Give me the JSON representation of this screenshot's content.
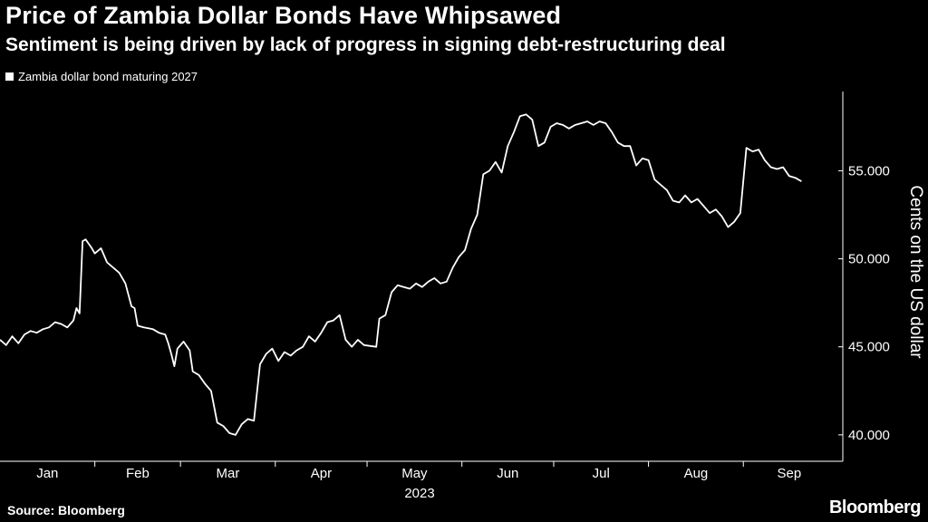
{
  "header": {
    "title": "Price of Zambia Dollar Bonds Have Whipsawed",
    "subtitle": "Sentiment is being driven by lack of progress in signing debt-restructuring deal"
  },
  "footer": {
    "source": "Source: Bloomberg",
    "brand": "Bloomberg"
  },
  "colors": {
    "background": "#000000",
    "line": "#ffffff",
    "text": "#ffffff"
  },
  "chart_data": {
    "type": "line",
    "title": "Price of Zambia Dollar Bonds Have Whipsawed",
    "subtitle": "Sentiment is being driven by lack of progress in signing debt-restructuring deal",
    "xlabel": "2023",
    "ylabel": "Cents on the US dollar",
    "ylim": [
      38.5,
      59.5
    ],
    "yticks": [
      40,
      45,
      50,
      55
    ],
    "ytick_labels": [
      "40.000",
      "45.000",
      "50.000",
      "55.000"
    ],
    "xlim": [
      "2023-01-01",
      "2023-09-27"
    ],
    "x_ticks": [
      "2023-01-01",
      "2023-02-01",
      "2023-03-01",
      "2023-04-01",
      "2023-05-01",
      "2023-06-01",
      "2023-07-01",
      "2023-08-01",
      "2023-09-01"
    ],
    "x_tick_labels": [
      "Jan",
      "Feb",
      "Mar",
      "Apr",
      "May",
      "Jun",
      "Jul",
      "Aug",
      "Sep"
    ],
    "year_label": "2023",
    "grid": false,
    "legend_position": "top-left",
    "series": [
      {
        "name": "Zambia dollar bond maturing 2027",
        "points": [
          [
            "2023-01-01",
            45.4
          ],
          [
            "2023-01-03",
            45.1
          ],
          [
            "2023-01-05",
            45.6
          ],
          [
            "2023-01-07",
            45.2
          ],
          [
            "2023-01-09",
            45.7
          ],
          [
            "2023-01-11",
            45.9
          ],
          [
            "2023-01-13",
            45.8
          ],
          [
            "2023-01-15",
            46.0
          ],
          [
            "2023-01-17",
            46.1
          ],
          [
            "2023-01-19",
            46.4
          ],
          [
            "2023-01-21",
            46.3
          ],
          [
            "2023-01-23",
            46.1
          ],
          [
            "2023-01-25",
            46.5
          ],
          [
            "2023-01-26",
            47.2
          ],
          [
            "2023-01-27",
            46.9
          ],
          [
            "2023-01-28",
            51.0
          ],
          [
            "2023-01-29",
            51.1
          ],
          [
            "2023-01-31",
            50.6
          ],
          [
            "2023-02-01",
            50.3
          ],
          [
            "2023-02-03",
            50.6
          ],
          [
            "2023-02-05",
            49.8
          ],
          [
            "2023-02-07",
            49.5
          ],
          [
            "2023-02-09",
            49.2
          ],
          [
            "2023-02-11",
            48.6
          ],
          [
            "2023-02-13",
            47.3
          ],
          [
            "2023-02-14",
            47.2
          ],
          [
            "2023-02-15",
            46.2
          ],
          [
            "2023-02-17",
            46.1
          ],
          [
            "2023-02-20",
            46.0
          ],
          [
            "2023-02-22",
            45.8
          ],
          [
            "2023-02-24",
            45.7
          ],
          [
            "2023-02-25",
            45.2
          ],
          [
            "2023-02-26",
            44.6
          ],
          [
            "2023-02-27",
            43.9
          ],
          [
            "2023-02-28",
            44.9
          ],
          [
            "2023-03-02",
            45.3
          ],
          [
            "2023-03-04",
            44.8
          ],
          [
            "2023-03-05",
            43.6
          ],
          [
            "2023-03-07",
            43.4
          ],
          [
            "2023-03-09",
            42.9
          ],
          [
            "2023-03-11",
            42.5
          ],
          [
            "2023-03-13",
            40.7
          ],
          [
            "2023-03-15",
            40.5
          ],
          [
            "2023-03-17",
            40.1
          ],
          [
            "2023-03-19",
            40.0
          ],
          [
            "2023-03-21",
            40.6
          ],
          [
            "2023-03-23",
            40.9
          ],
          [
            "2023-03-25",
            40.8
          ],
          [
            "2023-03-27",
            44.0
          ],
          [
            "2023-03-29",
            44.6
          ],
          [
            "2023-03-31",
            44.9
          ],
          [
            "2023-04-02",
            44.2
          ],
          [
            "2023-04-04",
            44.7
          ],
          [
            "2023-04-06",
            44.5
          ],
          [
            "2023-04-08",
            44.8
          ],
          [
            "2023-04-10",
            45.0
          ],
          [
            "2023-04-12",
            45.6
          ],
          [
            "2023-04-14",
            45.3
          ],
          [
            "2023-04-16",
            45.8
          ],
          [
            "2023-04-18",
            46.4
          ],
          [
            "2023-04-20",
            46.5
          ],
          [
            "2023-04-22",
            46.8
          ],
          [
            "2023-04-24",
            45.4
          ],
          [
            "2023-04-26",
            45.0
          ],
          [
            "2023-04-28",
            45.4
          ],
          [
            "2023-04-30",
            45.1
          ],
          [
            "2023-05-04",
            45.0
          ],
          [
            "2023-05-05",
            46.6
          ],
          [
            "2023-05-07",
            46.8
          ],
          [
            "2023-05-09",
            48.1
          ],
          [
            "2023-05-11",
            48.5
          ],
          [
            "2023-05-13",
            48.4
          ],
          [
            "2023-05-15",
            48.3
          ],
          [
            "2023-05-17",
            48.6
          ],
          [
            "2023-05-19",
            48.4
          ],
          [
            "2023-05-21",
            48.7
          ],
          [
            "2023-05-23",
            48.9
          ],
          [
            "2023-05-25",
            48.6
          ],
          [
            "2023-05-27",
            48.7
          ],
          [
            "2023-05-29",
            49.5
          ],
          [
            "2023-05-31",
            50.1
          ],
          [
            "2023-06-02",
            50.5
          ],
          [
            "2023-06-04",
            51.7
          ],
          [
            "2023-06-06",
            52.5
          ],
          [
            "2023-06-08",
            54.8
          ],
          [
            "2023-06-10",
            55.0
          ],
          [
            "2023-06-12",
            55.5
          ],
          [
            "2023-06-14",
            54.9
          ],
          [
            "2023-06-16",
            56.4
          ],
          [
            "2023-06-18",
            57.2
          ],
          [
            "2023-06-20",
            58.1
          ],
          [
            "2023-06-22",
            58.2
          ],
          [
            "2023-06-24",
            57.9
          ],
          [
            "2023-06-26",
            56.4
          ],
          [
            "2023-06-28",
            56.6
          ],
          [
            "2023-06-30",
            57.5
          ],
          [
            "2023-07-02",
            57.7
          ],
          [
            "2023-07-04",
            57.6
          ],
          [
            "2023-07-06",
            57.4
          ],
          [
            "2023-07-08",
            57.6
          ],
          [
            "2023-07-10",
            57.7
          ],
          [
            "2023-07-12",
            57.8
          ],
          [
            "2023-07-14",
            57.6
          ],
          [
            "2023-07-16",
            57.8
          ],
          [
            "2023-07-18",
            57.7
          ],
          [
            "2023-07-20",
            57.2
          ],
          [
            "2023-07-22",
            56.6
          ],
          [
            "2023-07-24",
            56.4
          ],
          [
            "2023-07-26",
            56.4
          ],
          [
            "2023-07-28",
            55.3
          ],
          [
            "2023-07-30",
            55.7
          ],
          [
            "2023-08-01",
            55.6
          ],
          [
            "2023-08-03",
            54.5
          ],
          [
            "2023-08-05",
            54.2
          ],
          [
            "2023-08-07",
            53.9
          ],
          [
            "2023-08-09",
            53.3
          ],
          [
            "2023-08-11",
            53.2
          ],
          [
            "2023-08-13",
            53.6
          ],
          [
            "2023-08-15",
            53.2
          ],
          [
            "2023-08-17",
            53.4
          ],
          [
            "2023-08-19",
            53.0
          ],
          [
            "2023-08-21",
            52.6
          ],
          [
            "2023-08-23",
            52.8
          ],
          [
            "2023-08-25",
            52.4
          ],
          [
            "2023-08-27",
            51.8
          ],
          [
            "2023-08-29",
            52.1
          ],
          [
            "2023-08-31",
            52.6
          ],
          [
            "2023-09-02",
            56.3
          ],
          [
            "2023-09-04",
            56.1
          ],
          [
            "2023-09-06",
            56.2
          ],
          [
            "2023-09-08",
            55.6
          ],
          [
            "2023-09-10",
            55.2
          ],
          [
            "2023-09-12",
            55.1
          ],
          [
            "2023-09-14",
            55.2
          ],
          [
            "2023-09-16",
            54.7
          ],
          [
            "2023-09-18",
            54.6
          ],
          [
            "2023-09-20",
            54.4
          ]
        ]
      }
    ]
  }
}
